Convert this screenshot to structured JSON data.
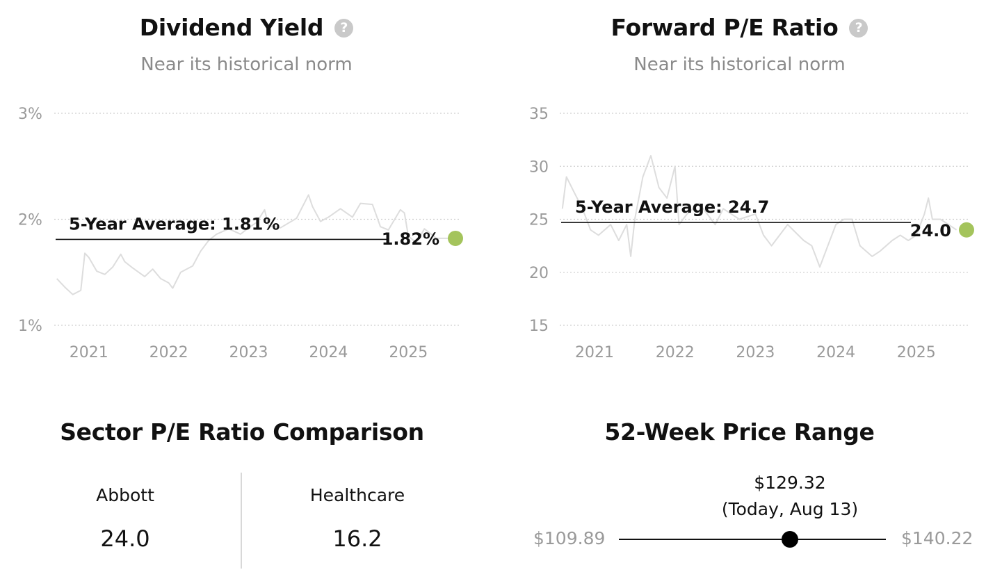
{
  "dividend": {
    "title": "Dividend Yield",
    "help_icon": "question-circle-icon",
    "help_glyph": "?",
    "subtitle": "Near its historical norm",
    "avg_label": "5-Year Average: 1.81%",
    "current_label": "1.82%"
  },
  "pe": {
    "title": "Forward P/E Ratio",
    "help_icon": "question-circle-icon",
    "help_glyph": "?",
    "subtitle": "Near its historical norm",
    "avg_label": "5-Year Average: 24.7",
    "current_label": "24.0"
  },
  "sector": {
    "title": "Sector P/E Ratio Comparison",
    "left_label": "Abbott",
    "left_value": "24.0",
    "right_label": "Healthcare",
    "right_value": "16.2"
  },
  "range": {
    "title": "52-Week Price Range",
    "current_price": "$129.32",
    "current_note": "(Today, Aug 13)",
    "low": "$109.89",
    "high": "$140.22",
    "low_value": 109.89,
    "high_value": 140.22,
    "current_value": 129.32
  },
  "chart_data": [
    {
      "type": "line",
      "title": "Dividend Yield",
      "subtitle": "Near its historical norm",
      "y_unit": "%",
      "y_ticks": [
        "1%",
        "2%",
        "3%"
      ],
      "ylim": [
        1,
        3
      ],
      "x_ticks": [
        "2021",
        "2022",
        "2023",
        "2024",
        "2025"
      ],
      "xlim": [
        2020.55,
        2025.65
      ],
      "average": 1.81,
      "average_label": "5-Year Average: 1.81%",
      "current": 1.82,
      "current_label": "1.82%",
      "current_color": "#a4c45c",
      "line_color": "#dddddd",
      "grid": true,
      "series": [
        {
          "x": [
            2020.6,
            2020.7,
            2020.8,
            2020.9,
            2020.95,
            2021.0,
            2021.1,
            2021.2,
            2021.3,
            2021.4,
            2021.45,
            2021.55,
            2021.7,
            2021.8,
            2021.9,
            2022.0,
            2022.05,
            2022.15,
            2022.3,
            2022.4,
            2022.5,
            2022.6,
            2022.75,
            2022.9,
            2023.0,
            2023.1,
            2023.2,
            2023.25,
            2023.4,
            2023.6,
            2023.75,
            2023.8,
            2023.9,
            2024.0,
            2024.15,
            2024.3,
            2024.4,
            2024.55,
            2024.65,
            2024.75,
            2024.9,
            2024.95,
            2025.0,
            2025.1,
            2025.2,
            2025.35,
            2025.5
          ],
          "y": [
            1.44,
            1.36,
            1.29,
            1.33,
            1.68,
            1.64,
            1.51,
            1.48,
            1.55,
            1.67,
            1.6,
            1.54,
            1.46,
            1.53,
            1.44,
            1.4,
            1.35,
            1.5,
            1.56,
            1.7,
            1.8,
            1.86,
            1.91,
            1.86,
            1.92,
            1.97,
            2.09,
            1.94,
            1.92,
            2.01,
            2.23,
            2.12,
            1.98,
            2.02,
            2.1,
            2.02,
            2.15,
            2.14,
            1.93,
            1.9,
            2.09,
            2.06,
            1.84,
            1.78,
            1.91,
            1.82,
            1.82
          ]
        }
      ]
    },
    {
      "type": "line",
      "title": "Forward P/E Ratio",
      "subtitle": "Near its historical norm",
      "y_ticks": [
        "15",
        "20",
        "25",
        "30",
        "35"
      ],
      "ylim": [
        15,
        35
      ],
      "x_ticks": [
        "2021",
        "2022",
        "2023",
        "2024",
        "2025"
      ],
      "xlim": [
        2020.55,
        2025.65
      ],
      "average": 24.7,
      "average_label": "5-Year Average: 24.7",
      "current": 24.0,
      "current_label": "24.0",
      "current_color": "#a4c45c",
      "line_color": "#dddddd",
      "grid": true,
      "series": [
        {
          "x": [
            2020.6,
            2020.65,
            2020.75,
            2020.85,
            2020.95,
            2021.05,
            2021.2,
            2021.3,
            2021.4,
            2021.45,
            2021.5,
            2021.6,
            2021.7,
            2021.8,
            2021.9,
            2022.0,
            2022.05,
            2022.15,
            2022.3,
            2022.5,
            2022.6,
            2022.8,
            2023.0,
            2023.1,
            2023.2,
            2023.4,
            2023.6,
            2023.7,
            2023.8,
            2023.9,
            2024.0,
            2024.1,
            2024.2,
            2024.3,
            2024.45,
            2024.55,
            2024.7,
            2024.8,
            2024.9,
            2025.0,
            2025.1,
            2025.15,
            2025.2,
            2025.3,
            2025.4,
            2025.5
          ],
          "y": [
            26.0,
            29.0,
            27.5,
            26.0,
            24.0,
            23.5,
            24.5,
            23.0,
            24.5,
            21.5,
            25.0,
            29.0,
            31.0,
            28.0,
            27.0,
            30.0,
            24.5,
            25.5,
            26.5,
            24.5,
            26.0,
            25.0,
            25.5,
            23.5,
            22.5,
            24.5,
            23.0,
            22.5,
            20.5,
            22.5,
            24.5,
            25.0,
            25.0,
            22.5,
            21.5,
            22.0,
            23.0,
            23.5,
            23.0,
            23.5,
            25.5,
            27.0,
            25.0,
            25.0,
            24.5,
            24.0
          ]
        }
      ]
    }
  ]
}
